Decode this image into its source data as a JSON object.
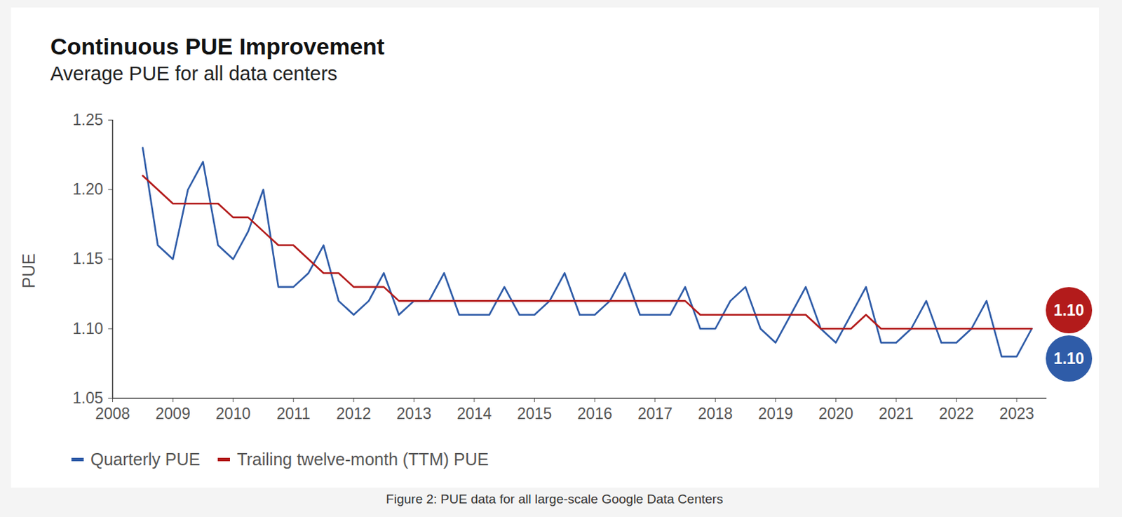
{
  "chart_data": {
    "type": "line",
    "title": "Continuous PUE Improvement",
    "subtitle": "Average PUE for all data centers",
    "caption": "Figure 2: PUE data for all large-scale Google Data Centers",
    "y_label": "PUE",
    "x": [
      2008.5,
      2008.75,
      2009,
      2009.25,
      2009.5,
      2009.75,
      2010,
      2010.25,
      2010.5,
      2010.75,
      2011,
      2011.25,
      2011.5,
      2011.75,
      2012,
      2012.25,
      2012.5,
      2012.75,
      2013,
      2013.25,
      2013.5,
      2013.75,
      2014,
      2014.25,
      2014.5,
      2014.75,
      2015,
      2015.25,
      2015.5,
      2015.75,
      2016,
      2016.25,
      2016.5,
      2016.75,
      2017,
      2017.25,
      2017.5,
      2017.75,
      2018,
      2018.25,
      2018.5,
      2018.75,
      2019,
      2019.25,
      2019.5,
      2019.75,
      2020,
      2020.25,
      2020.5,
      2020.75,
      2021,
      2021.25,
      2021.5,
      2021.75,
      2022,
      2022.25,
      2022.5,
      2022.75,
      2023,
      2023.25
    ],
    "series": [
      {
        "name": "Quarterly PUE",
        "color": "#2f5ca8",
        "values": [
          1.23,
          1.16,
          1.15,
          1.2,
          1.22,
          1.16,
          1.15,
          1.17,
          1.2,
          1.13,
          1.13,
          1.14,
          1.16,
          1.12,
          1.11,
          1.12,
          1.14,
          1.11,
          1.12,
          1.12,
          1.14,
          1.11,
          1.11,
          1.11,
          1.13,
          1.11,
          1.11,
          1.12,
          1.14,
          1.11,
          1.11,
          1.12,
          1.14,
          1.11,
          1.11,
          1.11,
          1.13,
          1.1,
          1.1,
          1.12,
          1.13,
          1.1,
          1.09,
          1.11,
          1.13,
          1.1,
          1.09,
          1.11,
          1.13,
          1.09,
          1.09,
          1.1,
          1.12,
          1.09,
          1.09,
          1.1,
          1.12,
          1.08,
          1.08,
          1.1
        ]
      },
      {
        "name": "Trailing twelve-month (TTM) PUE",
        "color": "#b31b1b",
        "values": [
          1.21,
          1.2,
          1.19,
          1.19,
          1.19,
          1.19,
          1.18,
          1.18,
          1.17,
          1.16,
          1.16,
          1.15,
          1.14,
          1.14,
          1.13,
          1.13,
          1.13,
          1.12,
          1.12,
          1.12,
          1.12,
          1.12,
          1.12,
          1.12,
          1.12,
          1.12,
          1.12,
          1.12,
          1.12,
          1.12,
          1.12,
          1.12,
          1.12,
          1.12,
          1.12,
          1.12,
          1.12,
          1.11,
          1.11,
          1.11,
          1.11,
          1.11,
          1.11,
          1.11,
          1.11,
          1.1,
          1.1,
          1.1,
          1.11,
          1.1,
          1.1,
          1.1,
          1.1,
          1.1,
          1.1,
          1.1,
          1.1,
          1.1,
          1.1,
          1.1
        ]
      }
    ],
    "xlim": [
      2008,
      2023.5
    ],
    "xticks": [
      2008,
      2009,
      2010,
      2011,
      2012,
      2013,
      2014,
      2015,
      2016,
      2017,
      2018,
      2019,
      2020,
      2021,
      2022,
      2023
    ],
    "ylim": [
      1.05,
      1.25
    ],
    "yticks": [
      1.05,
      {
        "value": 1.1,
        "label": "1.10"
      },
      1.15,
      {
        "value": 1.2,
        "label": "1.20"
      },
      1.25
    ],
    "grid": false,
    "legend": "bottom",
    "annotations": [
      {
        "text": "1.10",
        "series": "Trailing twelve-month (TTM) PUE"
      },
      {
        "text": "1.10",
        "series": "Quarterly PUE"
      }
    ]
  }
}
